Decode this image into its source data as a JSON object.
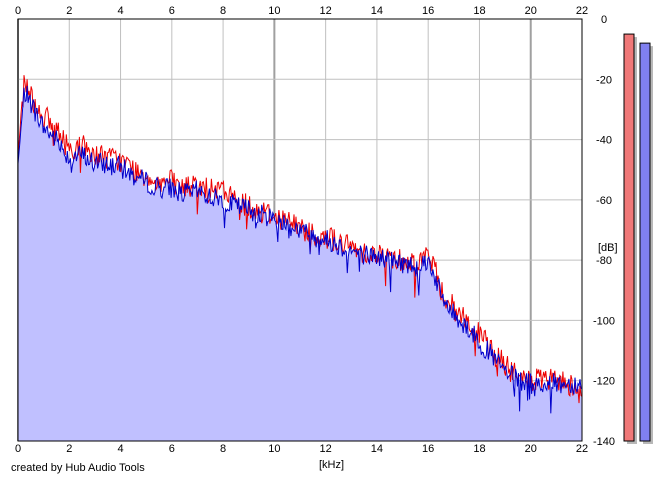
{
  "footer": {
    "credit": "created by Hub Audio Tools"
  },
  "chart_data": {
    "type": "area",
    "title": "",
    "xlabel": "[kHz]",
    "ylabel": "[dB]",
    "x_ticks": [
      "0",
      "2",
      "4",
      "6",
      "8",
      "10",
      "12",
      "14",
      "16",
      "18",
      "20",
      "22"
    ],
    "y_ticks": [
      "0",
      "-20",
      "-40",
      "-60",
      "-80",
      "-100",
      "-120",
      "-140"
    ],
    "xlim": [
      0,
      22
    ],
    "ylim": [
      -140,
      0
    ],
    "grid": true,
    "legend": "none",
    "x": [
      0,
      0.25,
      0.5,
      0.75,
      1,
      1.5,
      2,
      2.5,
      3,
      3.5,
      4,
      4.5,
      5,
      5.5,
      6,
      6.5,
      7,
      7.5,
      8,
      8.5,
      9,
      9.5,
      10,
      10.5,
      11,
      11.5,
      12,
      12.5,
      13,
      13.5,
      14,
      14.5,
      15,
      15.5,
      16,
      16.25,
      16.5,
      17,
      17.5,
      18,
      18.5,
      19,
      19.5,
      20,
      20.5,
      21,
      21.5,
      22
    ],
    "series": [
      {
        "color": "#ee0000",
        "values": [
          -45,
          -20,
          -25,
          -30,
          -32,
          -37,
          -43,
          -42,
          -45,
          -46,
          -47,
          -50,
          -52,
          -54,
          -54,
          -56,
          -55,
          -57,
          -57,
          -60,
          -62,
          -64,
          -65,
          -67,
          -69,
          -71,
          -72,
          -74,
          -76,
          -77,
          -78,
          -79,
          -80,
          -81,
          -78,
          -83,
          -90,
          -96,
          -100,
          -105,
          -110,
          -115,
          -119,
          -120,
          -120,
          -120,
          -121,
          -123
        ]
      },
      {
        "color": "#0000cc",
        "values": [
          -48,
          -24,
          -28,
          -32,
          -36,
          -40,
          -46,
          -45,
          -48,
          -48,
          -49,
          -52,
          -54,
          -56,
          -56,
          -58,
          -57,
          -59,
          -60,
          -62,
          -63,
          -65,
          -66,
          -68,
          -70,
          -72,
          -73,
          -75,
          -77,
          -78,
          -79,
          -80,
          -81,
          -82,
          -80,
          -85,
          -92,
          -98,
          -102,
          -107,
          -112,
          -117,
          -120,
          -121,
          -121,
          -121,
          -121,
          -121
        ]
      }
    ],
    "level_meters": [
      {
        "color": "#f07878",
        "level_db": -5
      },
      {
        "color": "#8080f0",
        "level_db": -8
      }
    ]
  }
}
